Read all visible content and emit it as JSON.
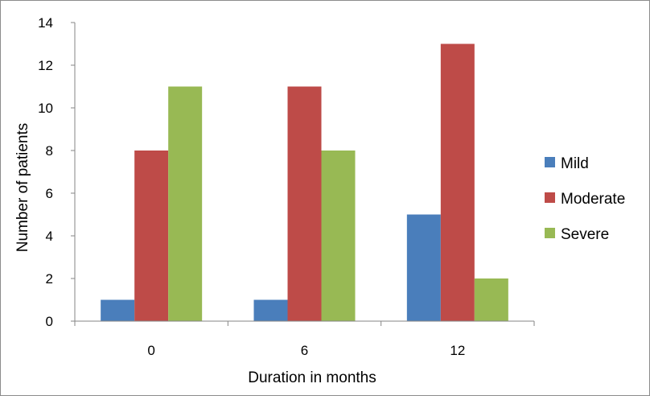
{
  "chart_data": {
    "type": "bar",
    "xlabel": "Duration in months",
    "ylabel": "Number of patients",
    "categories": [
      "0",
      "6",
      "12"
    ],
    "yticks": [
      "0",
      "2",
      "4",
      "6",
      "8",
      "10",
      "12",
      "14"
    ],
    "ylim": [
      0,
      14
    ],
    "grid": false,
    "legend_position": "right",
    "series": [
      {
        "name": "Mild",
        "values": [
          1,
          1,
          5
        ],
        "color": "#4a7ebb"
      },
      {
        "name": "Moderate",
        "values": [
          8,
          11,
          13
        ],
        "color": "#be4b48"
      },
      {
        "name": "Severe",
        "values": [
          11,
          8,
          2
        ],
        "color": "#98b954"
      }
    ]
  }
}
